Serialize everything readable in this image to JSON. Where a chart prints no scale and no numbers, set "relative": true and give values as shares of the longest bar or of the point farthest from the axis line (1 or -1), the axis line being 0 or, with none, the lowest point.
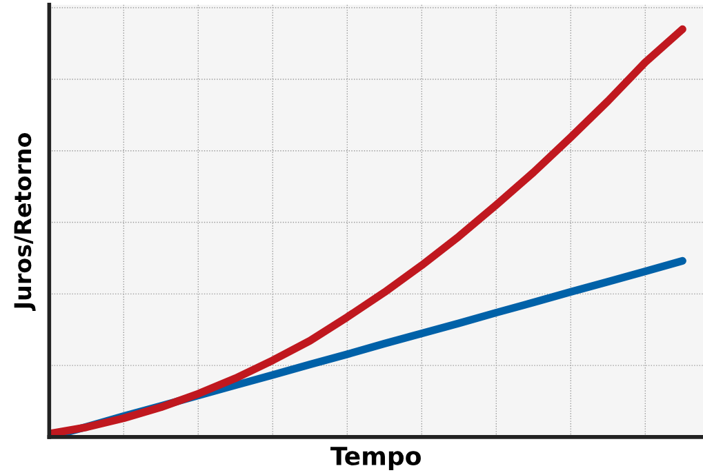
{
  "chart_data": {
    "type": "line",
    "relative": true,
    "xlabel": "Tempo",
    "ylabel": "Juros/Retorno",
    "grid": true,
    "marker": "none",
    "line_style": "solid",
    "categories": [
      null,
      null,
      null,
      null,
      null,
      null,
      null,
      null,
      null,
      null,
      null,
      null,
      null,
      null,
      null,
      null,
      null,
      null
    ],
    "series": [
      {
        "color": "#0061a8",
        "values": [
          0,
          0.025,
          0.051,
          0.076,
          0.102,
          0.127,
          0.152,
          0.178,
          0.203,
          0.229,
          0.254,
          0.279,
          0.305,
          0.33,
          0.356,
          0.381,
          0.406,
          0.432
        ]
      },
      {
        "color": "#c0181f",
        "values": [
          0.008,
          0.024,
          0.046,
          0.073,
          0.106,
          0.144,
          0.188,
          0.236,
          0.294,
          0.355,
          0.421,
          0.492,
          0.569,
          0.649,
          0.735,
          0.824,
          0.919,
          1.0
        ]
      }
    ]
  }
}
